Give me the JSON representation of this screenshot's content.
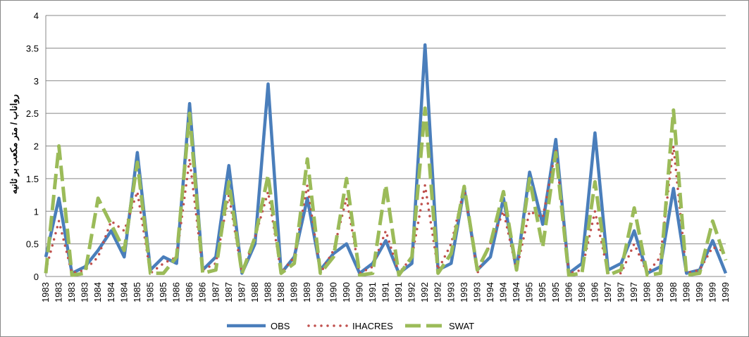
{
  "chart_data": {
    "type": "line",
    "y_label": "رواناب / متر مکعب بر ثانیه",
    "categories": [
      "1983",
      "1983",
      "1983",
      "1983",
      "1984",
      "1984",
      "1984",
      "1985",
      "1985",
      "1985",
      "1986",
      "1986",
      "1986",
      "1987",
      "1987",
      "1987",
      "1988",
      "1988",
      "1988",
      "1989",
      "1989",
      "1989",
      "1990",
      "1990",
      "1990",
      "1991",
      "1991",
      "1991",
      "1992",
      "1992",
      "1992",
      "1993",
      "1993",
      "1993",
      "1994",
      "1994",
      "1994",
      "1995",
      "1995",
      "1995",
      "1996",
      "1996",
      "1996",
      "1997",
      "1997",
      "1997",
      "1998",
      "1998",
      "1998",
      "1998",
      "1999",
      "1999",
      "1999"
    ],
    "series": [
      {
        "name": "OBS",
        "color": "#4a7ebb",
        "style": "solid",
        "values": [
          0.3,
          1.2,
          0.05,
          0.15,
          0.4,
          0.7,
          0.3,
          1.9,
          0.1,
          0.3,
          0.2,
          2.65,
          0.1,
          0.3,
          1.7,
          0.05,
          0.5,
          2.95,
          0.05,
          0.3,
          1.2,
          0.1,
          0.35,
          0.5,
          0.05,
          0.2,
          0.55,
          0.05,
          0.2,
          3.55,
          0.1,
          0.2,
          1.35,
          0.1,
          0.3,
          1.2,
          0.1,
          1.6,
          0.8,
          2.1,
          0.05,
          0.2,
          2.2,
          0.1,
          0.2,
          0.7,
          0.05,
          0.15,
          1.35,
          0.05,
          0.1,
          0.55,
          0.05
        ]
      },
      {
        "name": "IHACRES",
        "color": "#c0504d",
        "style": "dotted",
        "values": [
          0.1,
          0.85,
          0.05,
          0.1,
          0.3,
          0.85,
          0.7,
          1.3,
          0.05,
          0.2,
          0.3,
          1.8,
          0.1,
          0.2,
          1.25,
          0.05,
          0.6,
          1.3,
          0.05,
          0.3,
          1.4,
          0.05,
          0.4,
          1.2,
          0.05,
          0.15,
          0.7,
          0.05,
          0.3,
          1.4,
          0.1,
          0.5,
          1.35,
          0.05,
          0.5,
          1.0,
          0.1,
          1.0,
          0.9,
          1.95,
          0.05,
          0.1,
          1.0,
          0.05,
          0.05,
          0.5,
          0.05,
          0.3,
          2.0,
          0.05,
          0.1,
          0.45,
          0.38
        ]
      },
      {
        "name": "SWAT",
        "color": "#9bbb59",
        "style": "dashed",
        "values": [
          0.05,
          2.0,
          0.02,
          0.05,
          1.2,
          0.8,
          0.4,
          1.75,
          0.05,
          0.05,
          0.3,
          2.5,
          0.05,
          0.1,
          1.45,
          0.05,
          0.6,
          1.55,
          0.05,
          0.2,
          1.8,
          0.05,
          0.3,
          1.5,
          0.02,
          0.05,
          1.4,
          0.02,
          0.3,
          2.58,
          0.05,
          0.35,
          1.38,
          0.1,
          0.5,
          1.3,
          0.1,
          1.5,
          0.45,
          1.9,
          0.02,
          0.05,
          1.45,
          0.02,
          0.1,
          1.05,
          0.02,
          0.05,
          2.55,
          0.02,
          0.05,
          0.85,
          0.25
        ]
      }
    ],
    "ylim": [
      0,
      4
    ],
    "yticks": [
      0,
      0.5,
      1,
      1.5,
      2,
      2.5,
      3,
      3.5,
      4
    ],
    "grid": true,
    "legend": "bottom"
  }
}
